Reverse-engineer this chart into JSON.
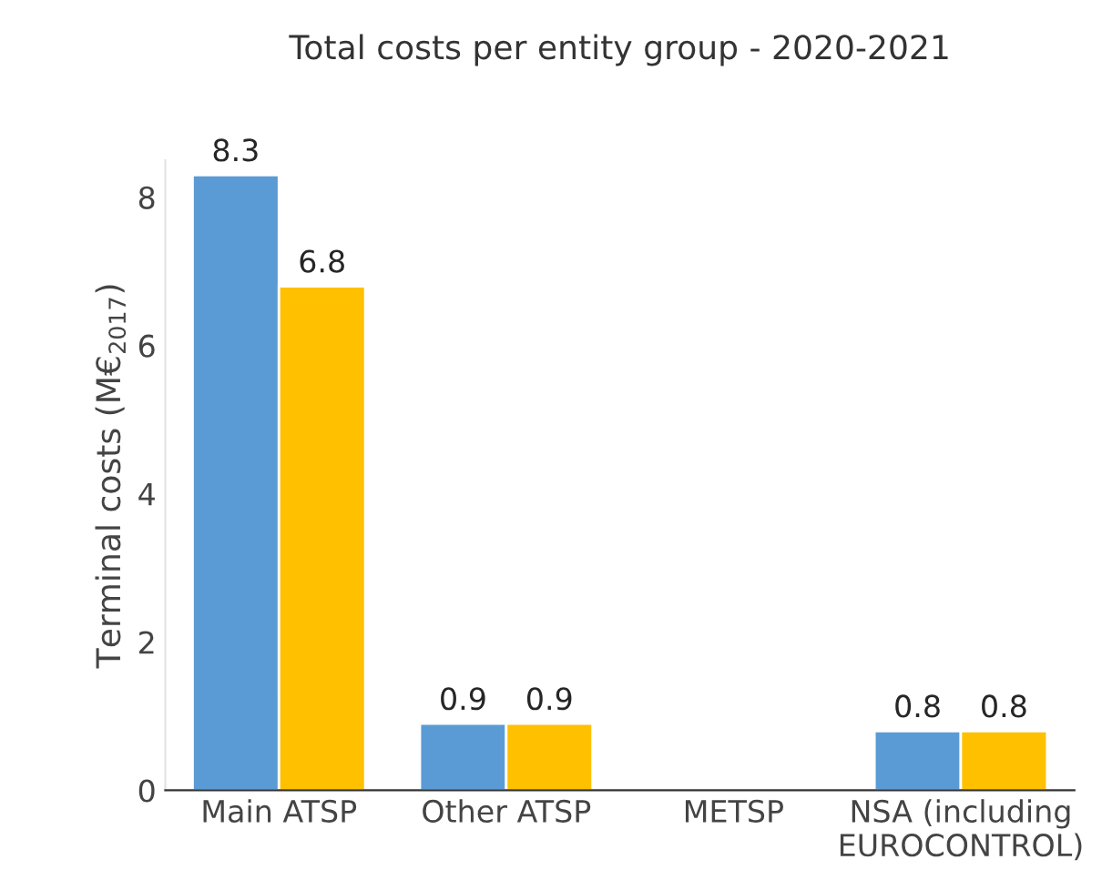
{
  "chart_data": {
    "type": "bar",
    "title": "Total costs per entity group - 2020-2021",
    "ylabel": "Terminal costs (M€$_{2017}$)",
    "categories": [
      "Main ATSP",
      "Other ATSP",
      "METSP",
      "NSA (including\nEUROCONTROL)"
    ],
    "series": [
      {
        "color": "#5b9bd5",
        "values": [
          8.3,
          0.9,
          null,
          0.8
        ]
      },
      {
        "color": "#ffc000",
        "values": [
          6.8,
          0.9,
          null,
          0.8
        ]
      }
    ],
    "ylim": [
      0,
      8.5
    ],
    "yticks": [
      0,
      2,
      4,
      6,
      8
    ],
    "data_labels": true,
    "grid": false
  }
}
